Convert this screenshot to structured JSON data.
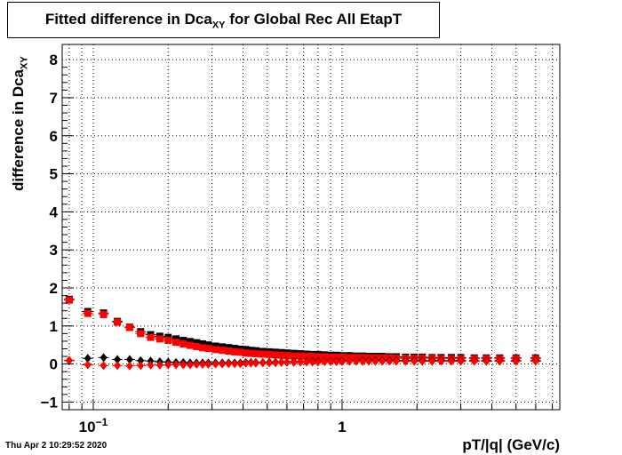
{
  "title": {
    "prefix": "Fitted difference in Dca",
    "sub": "XY",
    "suffix": " for Global Rec All EtapT"
  },
  "ylabel": {
    "prefix": "difference in Dca",
    "sub": "XY"
  },
  "xlabel": "pT/|q| (GeV/c)",
  "timestamp": "Thu Apr  2 10:29:52 2020",
  "chart_data": {
    "type": "scatter",
    "x_scale": "log",
    "xlim": [
      0.075,
      7.5
    ],
    "ylim": [
      -1.2,
      8.4
    ],
    "grid": true,
    "x_ticks": [
      {
        "value": 0.1,
        "base": "10",
        "exp": "−1"
      },
      {
        "value": 1,
        "label": "1"
      }
    ],
    "y_ticks": [
      -1,
      0,
      1,
      2,
      3,
      4,
      5,
      6,
      7,
      8
    ],
    "series": [
      {
        "color": "#000000",
        "marker": "square",
        "x": [
          0.08,
          0.095,
          0.11,
          0.125,
          0.14,
          0.155,
          0.17,
          0.185,
          0.2,
          0.215,
          0.23,
          0.245,
          0.26,
          0.275,
          0.29,
          0.31,
          0.33,
          0.35,
          0.37,
          0.39,
          0.41,
          0.43,
          0.45,
          0.48,
          0.51,
          0.54,
          0.57,
          0.6,
          0.64,
          0.68,
          0.72,
          0.76,
          0.8,
          0.85,
          0.9,
          0.95,
          1.0,
          1.07,
          1.14,
          1.21,
          1.28,
          1.36,
          1.45,
          1.55,
          1.65,
          1.8,
          1.95,
          2.1,
          2.3,
          2.5,
          2.75,
          3.0,
          3.4,
          3.8,
          4.3,
          5.0,
          6.0
        ],
        "y": [
          1.7,
          1.38,
          1.34,
          1.12,
          0.97,
          0.85,
          0.77,
          0.73,
          0.7,
          0.66,
          0.62,
          0.59,
          0.56,
          0.53,
          0.5,
          0.47,
          0.45,
          0.43,
          0.41,
          0.39,
          0.38,
          0.36,
          0.35,
          0.33,
          0.32,
          0.31,
          0.3,
          0.29,
          0.28,
          0.27,
          0.26,
          0.25,
          0.25,
          0.24,
          0.23,
          0.23,
          0.22,
          0.22,
          0.21,
          0.21,
          0.2,
          0.2,
          0.2,
          0.19,
          0.19,
          0.18,
          0.18,
          0.18,
          0.17,
          0.17,
          0.17,
          0.17,
          0.16,
          0.16,
          0.16,
          0.16,
          0.16
        ]
      },
      {
        "color": "#ff0000",
        "marker": "square",
        "x": [
          0.08,
          0.095,
          0.11,
          0.125,
          0.14,
          0.155,
          0.17,
          0.185,
          0.2,
          0.215,
          0.23,
          0.245,
          0.26,
          0.275,
          0.29,
          0.31,
          0.33,
          0.35,
          0.37,
          0.39,
          0.41,
          0.43,
          0.45,
          0.48,
          0.51,
          0.54,
          0.57,
          0.6,
          0.64,
          0.68,
          0.72,
          0.76,
          0.8,
          0.85,
          0.9,
          0.95,
          1.0,
          1.07,
          1.14,
          1.21,
          1.28,
          1.36,
          1.45,
          1.55,
          1.65,
          1.8,
          1.95,
          2.1,
          2.3,
          2.5,
          2.75,
          3.0,
          3.4,
          3.8,
          4.3,
          5.0,
          6.0
        ],
        "y": [
          1.68,
          1.33,
          1.3,
          1.1,
          0.96,
          0.8,
          0.7,
          0.66,
          0.62,
          0.57,
          0.53,
          0.49,
          0.46,
          0.43,
          0.41,
          0.38,
          0.36,
          0.34,
          0.32,
          0.31,
          0.29,
          0.28,
          0.27,
          0.26,
          0.25,
          0.24,
          0.23,
          0.22,
          0.21,
          0.21,
          0.2,
          0.2,
          0.19,
          0.19,
          0.18,
          0.18,
          0.18,
          0.17,
          0.17,
          0.17,
          0.16,
          0.16,
          0.16,
          0.16,
          0.15,
          0.15,
          0.15,
          0.15,
          0.15,
          0.14,
          0.14,
          0.14,
          0.14,
          0.14,
          0.14,
          0.14,
          0.14
        ]
      },
      {
        "color": "#000000",
        "marker": "diamond",
        "x": [
          0.08,
          0.095,
          0.11,
          0.125,
          0.14,
          0.155,
          0.17,
          0.185,
          0.2,
          0.215,
          0.23,
          0.245,
          0.26,
          0.275,
          0.29,
          0.31,
          0.33,
          0.35,
          0.37,
          0.39,
          0.41,
          0.43,
          0.45,
          0.48,
          0.51,
          0.54,
          0.57,
          0.6,
          0.64,
          0.68,
          0.72,
          0.76,
          0.8,
          0.85,
          0.9,
          0.95,
          1.0,
          1.07,
          1.14,
          1.21,
          1.28,
          1.36,
          1.45,
          1.55,
          1.65,
          1.8,
          1.95,
          2.1,
          2.3,
          2.5,
          2.75,
          3.0,
          3.4,
          3.8,
          4.3,
          5.0,
          6.0
        ],
        "y": [
          0.09,
          0.15,
          0.17,
          0.12,
          0.12,
          0.09,
          0.08,
          0.06,
          0.05,
          0.04,
          0.04,
          0.03,
          0.03,
          0.03,
          0.03,
          0.03,
          0.03,
          0.03,
          0.03,
          0.03,
          0.04,
          0.04,
          0.04,
          0.04,
          0.05,
          0.05,
          0.05,
          0.05,
          0.06,
          0.06,
          0.06,
          0.07,
          0.07,
          0.07,
          0.07,
          0.08,
          0.08,
          0.08,
          0.08,
          0.09,
          0.09,
          0.09,
          0.09,
          0.09,
          0.09,
          0.09,
          0.09,
          0.09,
          0.09,
          0.09,
          0.09,
          0.09,
          0.09,
          0.09,
          0.09,
          0.09,
          0.09
        ]
      },
      {
        "color": "#ff0000",
        "marker": "diamond",
        "x": [
          0.08,
          0.095,
          0.11,
          0.125,
          0.14,
          0.155,
          0.17,
          0.185,
          0.2,
          0.215,
          0.23,
          0.245,
          0.26,
          0.275,
          0.29,
          0.31,
          0.33,
          0.35,
          0.37,
          0.39,
          0.41,
          0.43,
          0.45,
          0.48,
          0.51,
          0.54,
          0.57,
          0.6,
          0.64,
          0.68,
          0.72,
          0.76,
          0.8,
          0.85,
          0.9,
          0.95,
          1.0,
          1.07,
          1.14,
          1.21,
          1.28,
          1.36,
          1.45,
          1.55,
          1.65,
          1.8,
          1.95,
          2.1,
          2.3,
          2.5,
          2.75,
          3.0,
          3.4,
          3.8,
          4.3,
          5.0,
          6.0
        ],
        "y": [
          0.1,
          -0.02,
          -0.04,
          -0.04,
          -0.05,
          -0.04,
          -0.03,
          -0.03,
          -0.02,
          -0.02,
          -0.02,
          -0.02,
          -0.01,
          -0.01,
          -0.01,
          0.0,
          0.0,
          0.01,
          0.01,
          0.01,
          0.02,
          0.02,
          0.02,
          0.03,
          0.03,
          0.03,
          0.04,
          0.04,
          0.04,
          0.05,
          0.05,
          0.05,
          0.05,
          0.06,
          0.06,
          0.06,
          0.06,
          0.07,
          0.07,
          0.07,
          0.07,
          0.07,
          0.07,
          0.07,
          0.07,
          0.07,
          0.07,
          0.07,
          0.07,
          0.07,
          0.07,
          0.07,
          0.07,
          0.07,
          0.07,
          0.07,
          0.07
        ]
      }
    ]
  }
}
